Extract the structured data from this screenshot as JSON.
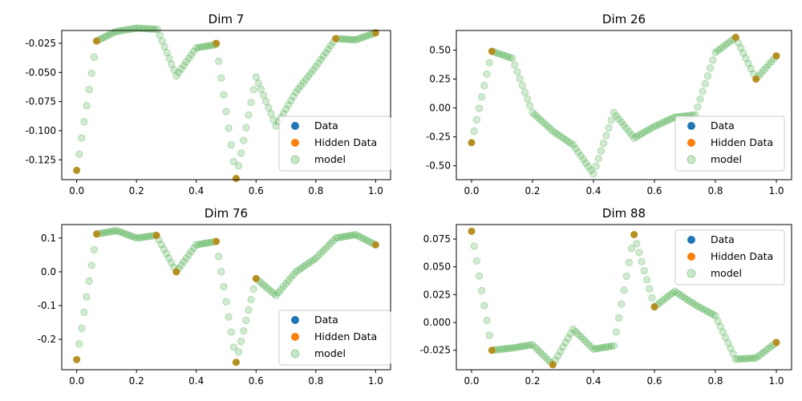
{
  "chart_data": [
    {
      "type": "scatter",
      "title": "Dim 7",
      "xlim": [
        -0.05,
        1.05
      ],
      "ylim": [
        -0.142,
        -0.014
      ],
      "xticks": [
        "0.0",
        "0.2",
        "0.4",
        "0.6",
        "0.8",
        "1.0"
      ],
      "yticks": [
        "-0.025",
        "-0.050",
        "-0.075",
        "-0.100",
        "-0.125"
      ],
      "legend": {
        "position": "lower right",
        "entries": [
          "Data",
          "Hidden Data",
          "model"
        ]
      },
      "hidden_data": [
        [
          0.0,
          -0.134
        ],
        [
          0.0667,
          -0.023
        ],
        [
          0.4667,
          -0.025
        ],
        [
          0.5333,
          -0.141
        ],
        [
          0.8667,
          -0.021
        ],
        [
          1.0,
          -0.016
        ]
      ],
      "model_knots": [
        [
          0.0,
          -0.134
        ],
        [
          0.0667,
          -0.023
        ],
        [
          0.13,
          -0.015
        ],
        [
          0.2,
          -0.012
        ],
        [
          0.27,
          -0.013
        ],
        [
          0.3333,
          -0.053
        ],
        [
          0.4,
          -0.029
        ],
        [
          0.4667,
          -0.026
        ],
        [
          0.5333,
          -0.141
        ],
        [
          0.6,
          -0.054
        ],
        [
          0.6667,
          -0.096
        ],
        [
          0.7333,
          -0.067
        ],
        [
          0.8,
          -0.045
        ],
        [
          0.8667,
          -0.021
        ],
        [
          0.9333,
          -0.022
        ],
        [
          1.0,
          -0.016
        ]
      ]
    },
    {
      "type": "scatter",
      "title": "Dim 26",
      "xlim": [
        -0.05,
        1.05
      ],
      "ylim": [
        -0.62,
        0.67
      ],
      "xticks": [
        "0.0",
        "0.2",
        "0.4",
        "0.6",
        "0.8",
        "1.0"
      ],
      "yticks": [
        "0.50",
        "0.25",
        "0.00",
        "-0.25",
        "-0.50"
      ],
      "legend": {
        "position": "lower right",
        "entries": [
          "Data",
          "Hidden Data",
          "model"
        ]
      },
      "hidden_data": [
        [
          0.0,
          -0.3
        ],
        [
          0.0667,
          0.49
        ],
        [
          0.8667,
          0.61
        ],
        [
          0.9333,
          0.25
        ],
        [
          1.0,
          0.45
        ]
      ],
      "model_knots": [
        [
          0.0,
          -0.3
        ],
        [
          0.0667,
          0.49
        ],
        [
          0.1333,
          0.43
        ],
        [
          0.2,
          -0.04
        ],
        [
          0.2667,
          -0.2
        ],
        [
          0.3333,
          -0.32
        ],
        [
          0.4,
          -0.57
        ],
        [
          0.4667,
          -0.04
        ],
        [
          0.5333,
          -0.26
        ],
        [
          0.6,
          -0.16
        ],
        [
          0.6667,
          -0.08
        ],
        [
          0.7333,
          -0.06
        ],
        [
          0.8,
          0.48
        ],
        [
          0.8667,
          0.61
        ],
        [
          0.9333,
          0.25
        ],
        [
          1.0,
          0.45
        ]
      ]
    },
    {
      "type": "scatter",
      "title": "Dim 76",
      "xlim": [
        -0.05,
        1.05
      ],
      "ylim": [
        -0.29,
        0.14
      ],
      "xticks": [
        "0.0",
        "0.2",
        "0.4",
        "0.6",
        "0.8",
        "1.0"
      ],
      "yticks": [
        "0.1",
        "0.0",
        "-0.1",
        "-0.2"
      ],
      "legend": {
        "position": "lower right",
        "entries": [
          "Data",
          "Hidden Data",
          "model"
        ]
      },
      "hidden_data": [
        [
          0.0,
          -0.26
        ],
        [
          0.0667,
          0.112
        ],
        [
          0.2667,
          0.108
        ],
        [
          0.3333,
          0.0
        ],
        [
          0.4667,
          0.09
        ],
        [
          0.5333,
          -0.268
        ],
        [
          0.6,
          -0.02
        ],
        [
          1.0,
          0.08
        ]
      ],
      "model_knots": [
        [
          0.0,
          -0.26
        ],
        [
          0.0667,
          0.112
        ],
        [
          0.1333,
          0.122
        ],
        [
          0.2,
          0.1
        ],
        [
          0.2667,
          0.108
        ],
        [
          0.3333,
          0.0
        ],
        [
          0.4,
          0.08
        ],
        [
          0.4667,
          0.09
        ],
        [
          0.5333,
          -0.268
        ],
        [
          0.6,
          -0.02
        ],
        [
          0.6667,
          -0.07
        ],
        [
          0.7333,
          0.0
        ],
        [
          0.8,
          0.04
        ],
        [
          0.8667,
          0.1
        ],
        [
          0.9333,
          0.11
        ],
        [
          1.0,
          0.08
        ]
      ]
    },
    {
      "type": "scatter",
      "title": "Dim 88",
      "xlim": [
        -0.05,
        1.05
      ],
      "ylim": [
        -0.0425,
        0.088
      ],
      "xticks": [
        "0.0",
        "0.2",
        "0.4",
        "0.6",
        "0.8",
        "1.0"
      ],
      "yticks": [
        "0.075",
        "0.050",
        "0.025",
        "0.000",
        "-0.025"
      ],
      "legend": {
        "position": "upper right",
        "entries": [
          "Data",
          "Hidden Data",
          "model"
        ]
      },
      "hidden_data": [
        [
          0.0,
          0.082
        ],
        [
          0.0667,
          -0.025
        ],
        [
          0.2667,
          -0.038
        ],
        [
          0.5333,
          0.079
        ],
        [
          0.6,
          0.014
        ],
        [
          1.0,
          -0.018
        ]
      ],
      "model_knots": [
        [
          0.0,
          0.082
        ],
        [
          0.0667,
          -0.025
        ],
        [
          0.1333,
          -0.023
        ],
        [
          0.2,
          -0.02
        ],
        [
          0.2667,
          -0.038
        ],
        [
          0.3333,
          -0.006
        ],
        [
          0.4,
          -0.024
        ],
        [
          0.4667,
          -0.021
        ],
        [
          0.5333,
          0.079
        ],
        [
          0.6,
          0.014
        ],
        [
          0.6667,
          0.028
        ],
        [
          0.7333,
          0.016
        ],
        [
          0.8,
          0.006
        ],
        [
          0.8667,
          -0.033
        ],
        [
          0.9333,
          -0.032
        ],
        [
          1.0,
          -0.018
        ]
      ]
    }
  ],
  "colors": {
    "data": "#1f77b4",
    "hidden_data": "#ff7f0e",
    "model": "#2ca02c"
  }
}
